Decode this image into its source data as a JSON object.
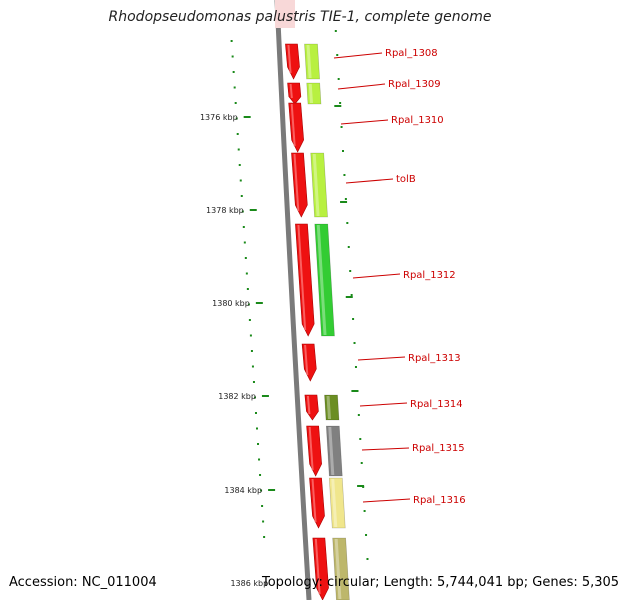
{
  "title": "Rhodopseudomonas palustris TIE-1, complete genome",
  "footer": {
    "accession": "Accession: NC_011004",
    "summary": "Topology: circular; Length: 5,744,041 bp; Genes: 5,305"
  },
  "colors": {
    "backbone": "#7a7a7a",
    "tick": "#1a8a1a",
    "strand_forward": "#ee1111",
    "label": "#cc0000"
  },
  "scale_labels": [
    "1376 kbp",
    "1378 kbp",
    "1380 kbp",
    "1382 kbp",
    "1384 kbp",
    "1386 kbp"
  ],
  "genes": [
    {
      "label": "Rpal_1308",
      "color": "#b8f040"
    },
    {
      "label": "Rpal_1309",
      "color": "#b8f040"
    },
    {
      "label": "Rpal_1310",
      "color": null
    },
    {
      "label": "tolB",
      "color": "#b8f040"
    },
    {
      "label": "Rpal_1312",
      "color": "#33cc33"
    },
    {
      "label": "Rpal_1313",
      "color": null
    },
    {
      "label": "Rpal_1314",
      "color": "#6b8e23"
    },
    {
      "label": "Rpal_1315",
      "color": "#808080"
    },
    {
      "label": "Rpal_1316",
      "color": "#f0e68c"
    },
    {
      "label": "",
      "color": "#bdb76b"
    }
  ]
}
